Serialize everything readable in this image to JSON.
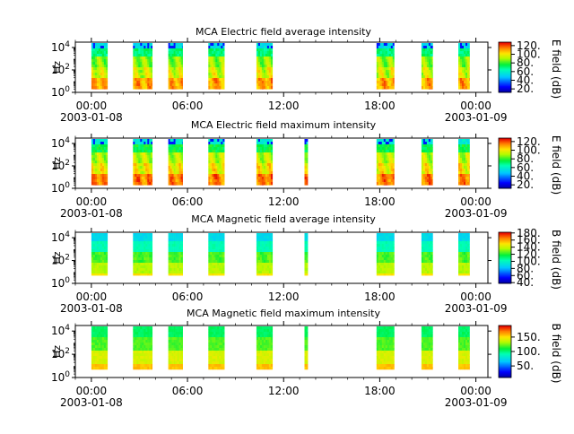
{
  "chart_data": [
    {
      "type": "heatmap",
      "title": "MCA  Electric field average intensity",
      "ylabel": "Hz",
      "y_scale": "log",
      "ylim": [
        1,
        30000
      ],
      "y_ticks": [
        {
          "exp": "0"
        },
        {
          "exp": "2"
        },
        {
          "exp": "4"
        }
      ],
      "x_range": [
        "2003-01-07 23:00",
        "2003-01-09 00:45"
      ],
      "x_ticks": [
        {
          "time": "00:00",
          "date": "2003-01-08"
        },
        {
          "time": "06:00",
          "date": ""
        },
        {
          "time": "12:00",
          "date": ""
        },
        {
          "time": "18:00",
          "date": ""
        },
        {
          "time": "00:00",
          "date": "2003-01-09"
        }
      ],
      "data_hours": [
        [
          0.0,
          1.0
        ],
        [
          2.6,
          3.8
        ],
        [
          4.8,
          5.7
        ],
        [
          7.3,
          8.3
        ],
        [
          10.3,
          11.3
        ],
        [
          17.8,
          18.9
        ],
        [
          20.6,
          21.3
        ],
        [
          22.9,
          23.6
        ]
      ],
      "freq_range_log10": [
        0.3,
        4.4
      ],
      "colorbar": {
        "label": "E field (dB)",
        "ticks": [
          "20.",
          "40.",
          "60.",
          "80.",
          "100.",
          "120."
        ],
        "range": [
          12,
          128
        ]
      },
      "pattern": "average"
    },
    {
      "type": "heatmap",
      "title": "MCA  Electric field maximum intensity",
      "ylabel": "Hz",
      "y_scale": "log",
      "ylim": [
        1,
        30000
      ],
      "y_ticks": [
        {
          "exp": "0"
        },
        {
          "exp": "2"
        },
        {
          "exp": "4"
        }
      ],
      "x_range": [
        "2003-01-07 23:00",
        "2003-01-09 00:45"
      ],
      "x_ticks": [
        {
          "time": "00:00",
          "date": "2003-01-08"
        },
        {
          "time": "06:00",
          "date": ""
        },
        {
          "time": "12:00",
          "date": ""
        },
        {
          "time": "18:00",
          "date": ""
        },
        {
          "time": "00:00",
          "date": "2003-01-09"
        }
      ],
      "data_hours": [
        [
          0.0,
          1.0
        ],
        [
          2.6,
          3.8
        ],
        [
          4.8,
          5.7
        ],
        [
          7.3,
          8.3
        ],
        [
          10.3,
          11.3
        ],
        [
          13.3,
          13.5
        ],
        [
          17.8,
          18.9
        ],
        [
          20.6,
          21.3
        ],
        [
          22.9,
          23.6
        ]
      ],
      "freq_range_log10": [
        0.3,
        4.4
      ],
      "colorbar": {
        "label": "E field (dB)",
        "ticks": [
          "20.",
          "40.",
          "60.",
          "80.",
          "100.",
          "120."
        ],
        "range": [
          12,
          128
        ]
      },
      "pattern": "maximum"
    },
    {
      "type": "heatmap",
      "title": "MCA  Magnetic field average intensity",
      "ylabel": "Hz",
      "y_scale": "log",
      "ylim": [
        1,
        30000
      ],
      "y_ticks": [
        {
          "exp": "0"
        },
        {
          "exp": "2"
        },
        {
          "exp": "4"
        }
      ],
      "x_range": [
        "2003-01-07 23:00",
        "2003-01-09 00:45"
      ],
      "x_ticks": [
        {
          "time": "00:00",
          "date": "2003-01-08"
        },
        {
          "time": "06:00",
          "date": ""
        },
        {
          "time": "12:00",
          "date": ""
        },
        {
          "time": "18:00",
          "date": ""
        },
        {
          "time": "00:00",
          "date": "2003-01-09"
        }
      ],
      "data_hours": [
        [
          0.0,
          1.0
        ],
        [
          2.6,
          3.8
        ],
        [
          4.8,
          5.7
        ],
        [
          7.3,
          8.3
        ],
        [
          10.3,
          11.3
        ],
        [
          13.3,
          13.5
        ],
        [
          17.8,
          18.9
        ],
        [
          20.6,
          21.3
        ],
        [
          22.9,
          23.6
        ]
      ],
      "freq_range_log10": [
        0.7,
        4.4
      ],
      "colorbar": {
        "label": "B field (dB)",
        "ticks": [
          "40.",
          "60.",
          "80.",
          "100.",
          "120.",
          "140.",
          "160.",
          "180."
        ],
        "range": [
          38,
          182
        ]
      },
      "pattern": "magnetic"
    },
    {
      "type": "heatmap",
      "title": "MCA  Magnetic field maximum intensity",
      "ylabel": "Hz",
      "y_scale": "log",
      "ylim": [
        1,
        30000
      ],
      "y_ticks": [
        {
          "exp": "0"
        },
        {
          "exp": "2"
        },
        {
          "exp": "4"
        }
      ],
      "x_range": [
        "2003-01-07 23:00",
        "2003-01-09 00:45"
      ],
      "x_ticks": [
        {
          "time": "00:00",
          "date": "2003-01-08"
        },
        {
          "time": "06:00",
          "date": ""
        },
        {
          "time": "12:00",
          "date": ""
        },
        {
          "time": "18:00",
          "date": ""
        },
        {
          "time": "00:00",
          "date": "2003-01-09"
        }
      ],
      "data_hours": [
        [
          0.0,
          1.0
        ],
        [
          2.6,
          3.8
        ],
        [
          4.8,
          5.7
        ],
        [
          7.3,
          8.3
        ],
        [
          10.3,
          11.3
        ],
        [
          13.3,
          13.5
        ],
        [
          17.8,
          18.9
        ],
        [
          20.6,
          21.3
        ],
        [
          22.9,
          23.6
        ]
      ],
      "freq_range_log10": [
        0.7,
        4.4
      ],
      "colorbar": {
        "label": "B field (dB)",
        "ticks": [
          "50.",
          "100.",
          "150."
        ],
        "range": [
          10,
          190
        ]
      },
      "pattern": "magnetic-max"
    }
  ]
}
